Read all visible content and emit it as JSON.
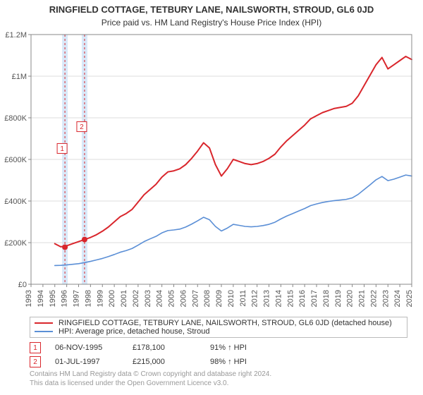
{
  "title": "RINGFIELD COTTAGE, TETBURY LANE, NAILSWORTH, STROUD, GL6 0JD",
  "subtitle": "Price paid vs. HM Land Registry's House Price Index (HPI)",
  "chart": {
    "type": "line",
    "background_color": "#ffffff",
    "border_color": "#888888",
    "grid_color": "#dddddd",
    "axis_color": "#888888",
    "tick_color": "#888888",
    "tick_label_color": "#555555",
    "tick_fontsize": 11,
    "x": {
      "min": 1993,
      "max": 2025,
      "ticks": [
        1993,
        1994,
        1995,
        1996,
        1997,
        1998,
        1999,
        2000,
        2001,
        2002,
        2003,
        2004,
        2005,
        2006,
        2007,
        2008,
        2009,
        2010,
        2011,
        2012,
        2013,
        2014,
        2015,
        2016,
        2017,
        2018,
        2019,
        2020,
        2021,
        2022,
        2023,
        2024,
        2025
      ]
    },
    "y": {
      "min": 0,
      "max": 1200000,
      "ticks": [
        0,
        200000,
        400000,
        600000,
        800000,
        1000000,
        1200000
      ],
      "tick_labels": [
        "£0",
        "£200K",
        "£400K",
        "£600K",
        "£800K",
        "£1M",
        "£1.2M"
      ]
    },
    "series": [
      {
        "name": "property",
        "label": "RINGFIELD COTTAGE, TETBURY LANE, NAILSWORTH, STROUD, GL6 0JD (detached house)",
        "color": "#d9262c",
        "line_width": 2,
        "points": [
          [
            1995.0,
            195000
          ],
          [
            1995.5,
            180000
          ],
          [
            1996.0,
            185000
          ],
          [
            1996.5,
            195000
          ],
          [
            1997.0,
            205000
          ],
          [
            1997.5,
            215000
          ],
          [
            1998.0,
            225000
          ],
          [
            1998.5,
            238000
          ],
          [
            1999.0,
            255000
          ],
          [
            1999.5,
            275000
          ],
          [
            2000.0,
            300000
          ],
          [
            2000.5,
            325000
          ],
          [
            2001.0,
            340000
          ],
          [
            2001.5,
            360000
          ],
          [
            2002.0,
            395000
          ],
          [
            2002.5,
            430000
          ],
          [
            2003.0,
            455000
          ],
          [
            2003.5,
            480000
          ],
          [
            2004.0,
            515000
          ],
          [
            2004.5,
            540000
          ],
          [
            2005.0,
            545000
          ],
          [
            2005.5,
            555000
          ],
          [
            2006.0,
            575000
          ],
          [
            2006.5,
            605000
          ],
          [
            2007.0,
            640000
          ],
          [
            2007.5,
            680000
          ],
          [
            2008.0,
            655000
          ],
          [
            2008.5,
            575000
          ],
          [
            2009.0,
            520000
          ],
          [
            2009.5,
            555000
          ],
          [
            2010.0,
            600000
          ],
          [
            2010.5,
            590000
          ],
          [
            2011.0,
            580000
          ],
          [
            2011.5,
            575000
          ],
          [
            2012.0,
            580000
          ],
          [
            2012.5,
            590000
          ],
          [
            2013.0,
            605000
          ],
          [
            2013.5,
            625000
          ],
          [
            2014.0,
            660000
          ],
          [
            2014.5,
            690000
          ],
          [
            2015.0,
            715000
          ],
          [
            2015.5,
            740000
          ],
          [
            2016.0,
            765000
          ],
          [
            2016.5,
            795000
          ],
          [
            2017.0,
            810000
          ],
          [
            2017.5,
            825000
          ],
          [
            2018.0,
            835000
          ],
          [
            2018.5,
            845000
          ],
          [
            2019.0,
            850000
          ],
          [
            2019.5,
            855000
          ],
          [
            2020.0,
            870000
          ],
          [
            2020.5,
            905000
          ],
          [
            2021.0,
            955000
          ],
          [
            2021.5,
            1005000
          ],
          [
            2022.0,
            1055000
          ],
          [
            2022.5,
            1090000
          ],
          [
            2023.0,
            1035000
          ],
          [
            2023.5,
            1055000
          ],
          [
            2024.0,
            1075000
          ],
          [
            2024.5,
            1095000
          ],
          [
            2025.0,
            1080000
          ]
        ],
        "markers": [
          {
            "x": 1995.85,
            "y": 178100,
            "label": "1",
            "label_offset": [
              -4,
              -140
            ]
          },
          {
            "x": 1997.5,
            "y": 215000,
            "label": "2",
            "label_offset": [
              -4,
              -160
            ]
          }
        ]
      },
      {
        "name": "hpi",
        "label": "HPI: Average price, detached house, Stroud",
        "color": "#5b8fd6",
        "line_width": 1.6,
        "points": [
          [
            1995.0,
            90000
          ],
          [
            1995.5,
            91000
          ],
          [
            1996.0,
            93000
          ],
          [
            1996.5,
            96000
          ],
          [
            1997.0,
            99000
          ],
          [
            1997.5,
            104000
          ],
          [
            1998.0,
            110000
          ],
          [
            1998.5,
            117000
          ],
          [
            1999.0,
            124000
          ],
          [
            1999.5,
            133000
          ],
          [
            2000.0,
            143000
          ],
          [
            2000.5,
            154000
          ],
          [
            2001.0,
            162000
          ],
          [
            2001.5,
            172000
          ],
          [
            2002.0,
            188000
          ],
          [
            2002.5,
            205000
          ],
          [
            2003.0,
            218000
          ],
          [
            2003.5,
            230000
          ],
          [
            2004.0,
            247000
          ],
          [
            2004.5,
            258000
          ],
          [
            2005.0,
            261000
          ],
          [
            2005.5,
            265000
          ],
          [
            2006.0,
            275000
          ],
          [
            2006.5,
            289000
          ],
          [
            2007.0,
            305000
          ],
          [
            2007.5,
            322000
          ],
          [
            2008.0,
            310000
          ],
          [
            2008.5,
            278000
          ],
          [
            2009.0,
            256000
          ],
          [
            2009.5,
            270000
          ],
          [
            2010.0,
            288000
          ],
          [
            2010.5,
            283000
          ],
          [
            2011.0,
            278000
          ],
          [
            2011.5,
            276000
          ],
          [
            2012.0,
            278000
          ],
          [
            2012.5,
            282000
          ],
          [
            2013.0,
            288000
          ],
          [
            2013.5,
            298000
          ],
          [
            2014.0,
            314000
          ],
          [
            2014.5,
            328000
          ],
          [
            2015.0,
            340000
          ],
          [
            2015.5,
            352000
          ],
          [
            2016.0,
            364000
          ],
          [
            2016.5,
            378000
          ],
          [
            2017.0,
            386000
          ],
          [
            2017.5,
            393000
          ],
          [
            2018.0,
            398000
          ],
          [
            2018.5,
            402000
          ],
          [
            2019.0,
            405000
          ],
          [
            2019.5,
            408000
          ],
          [
            2020.0,
            415000
          ],
          [
            2020.5,
            432000
          ],
          [
            2021.0,
            455000
          ],
          [
            2021.5,
            478000
          ],
          [
            2022.0,
            502000
          ],
          [
            2022.5,
            518000
          ],
          [
            2023.0,
            498000
          ],
          [
            2023.5,
            505000
          ],
          [
            2024.0,
            515000
          ],
          [
            2024.5,
            525000
          ],
          [
            2025.0,
            520000
          ]
        ]
      }
    ],
    "sale_bands": [
      {
        "x": 1995.85,
        "color": "#d0e4f7",
        "line_color": "#d9262c"
      },
      {
        "x": 1997.5,
        "color": "#d0e4f7",
        "line_color": "#d9262c"
      }
    ],
    "marker_style": {
      "radius": 4,
      "fill": "#d9262c",
      "badge_border": "#d9262c",
      "badge_text": "#d9262c",
      "badge_bg": "#ffffff",
      "badge_size": 14,
      "badge_fontsize": 10
    }
  },
  "legend": {
    "series": [
      {
        "color": "#d9262c",
        "label_path": "chart.series.0.label"
      },
      {
        "color": "#5b8fd6",
        "label_path": "chart.series.1.label"
      }
    ]
  },
  "notes": {
    "rows": [
      {
        "badge": "1",
        "badge_color": "#d9262c",
        "date": "06-NOV-1995",
        "price": "£178,100",
        "pct": "91% ↑ HPI"
      },
      {
        "badge": "2",
        "badge_color": "#d9262c",
        "date": "01-JUL-1997",
        "price": "£215,000",
        "pct": "98% ↑ HPI"
      }
    ]
  },
  "copyright": {
    "line1": "Contains HM Land Registry data © Crown copyright and database right 2024.",
    "line2": "This data is licensed under the Open Government Licence v3.0."
  }
}
